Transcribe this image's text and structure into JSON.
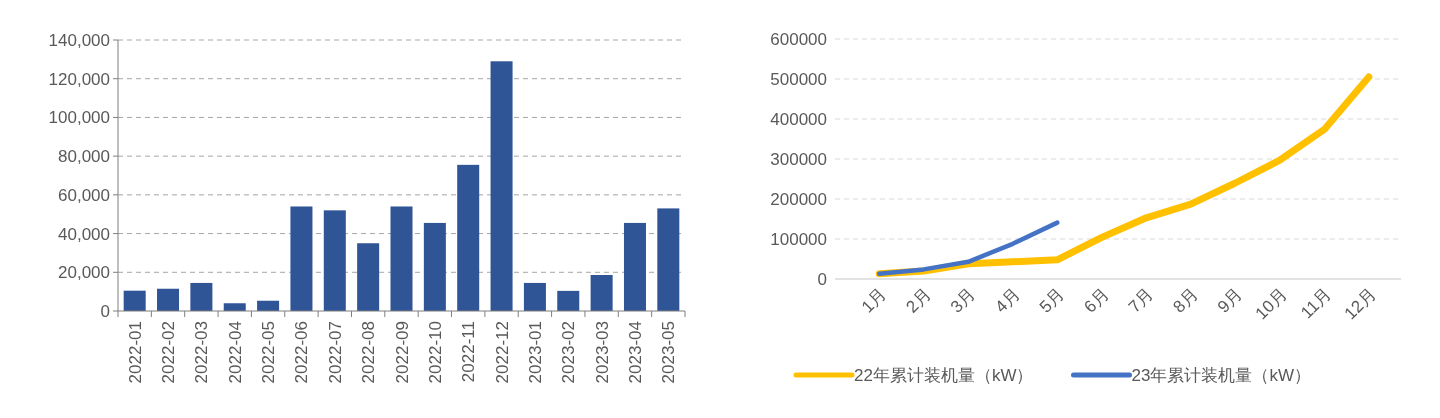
{
  "chart_data": [
    {
      "type": "bar",
      "categories": [
        "2022-01",
        "2022-02",
        "2022-03",
        "2022-04",
        "2022-05",
        "2022-06",
        "2022-07",
        "2022-08",
        "2022-09",
        "2022-10",
        "2022-11",
        "2022-12",
        "2023-01",
        "2023-02",
        "2023-03",
        "2023-04",
        "2023-05"
      ],
      "values": [
        10500,
        11500,
        14500,
        4000,
        5300,
        54000,
        52000,
        35000,
        54000,
        45500,
        75500,
        129000,
        14500,
        10400,
        18600,
        45500,
        53000
      ],
      "color": "#2f5597",
      "ylim": [
        0,
        140000
      ],
      "yticks": [
        0,
        {
          "value": 20000,
          "label": "20,000"
        },
        {
          "value": 40000,
          "label": "40,000"
        },
        {
          "value": 60000,
          "label": "60,000"
        },
        {
          "value": 80000,
          "label": "80,000"
        },
        {
          "value": 100000,
          "label": "100,000"
        },
        {
          "value": 120000,
          "label": "120,000"
        },
        {
          "value": 140000,
          "label": "140,000"
        }
      ],
      "grid": "y"
    },
    {
      "type": "line",
      "categories": [
        "1月",
        "2月",
        "3月",
        "4月",
        "5月",
        "6月",
        "7月",
        "8月",
        "9月",
        "10月",
        "11月",
        "12月"
      ],
      "series": [
        {
          "name": "22年累计装机量（kW）",
          "color": "#ffc000",
          "values": [
            13000,
            20000,
            38000,
            43000,
            48000,
            104000,
            153000,
            187000,
            240000,
            297000,
            374000,
            505000
          ]
        },
        {
          "name": "23年累计装机量（kW）",
          "color": "#4472c4",
          "values": [
            13000,
            24000,
            43000,
            88000,
            141000,
            null,
            null,
            null,
            null,
            null,
            null,
            null
          ]
        }
      ],
      "ylim": [
        0,
        600000
      ],
      "yticks": [
        0,
        100000,
        200000,
        300000,
        400000,
        500000,
        600000
      ],
      "grid": "y",
      "legend": "bottom"
    }
  ]
}
